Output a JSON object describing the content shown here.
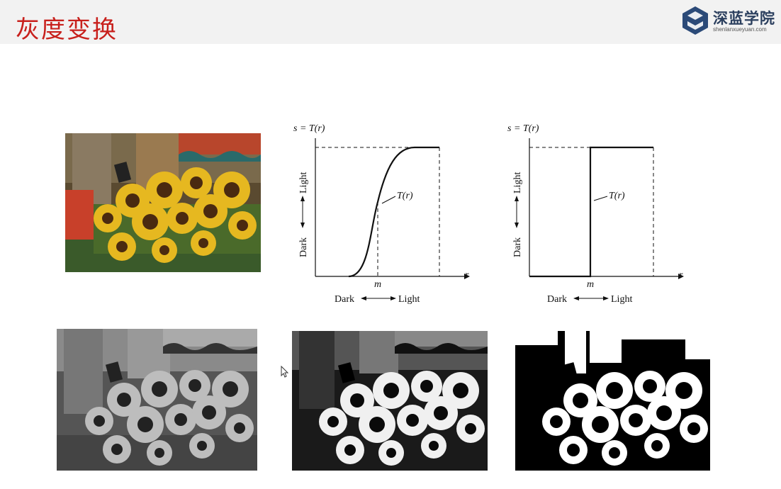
{
  "slide": {
    "title": "灰度变换",
    "logo": {
      "name": "深蓝学院",
      "url": "shenlanxueyuan.com",
      "mark_color": "#2b4a78",
      "icon": "diamond-s-logo-icon"
    }
  },
  "graphs": [
    {
      "type": "contrast-stretching",
      "y_axis_label": "s = T(r)",
      "x_axis_label": "r",
      "curve_label": "T(r)",
      "midpoint_label": "m",
      "vertical_dark": "Dark",
      "vertical_light": "Light",
      "horizontal_dark": "Dark",
      "horizontal_light": "Light"
    },
    {
      "type": "thresholding",
      "y_axis_label": "s = T(r)",
      "x_axis_label": "r",
      "curve_label": "T(r)",
      "midpoint_label": "m",
      "vertical_dark": "Dark",
      "vertical_light": "Light",
      "horizontal_dark": "Dark",
      "horizontal_light": "Light"
    }
  ],
  "images": [
    {
      "id": "original-color",
      "description_icon": "sunflower-photo"
    },
    {
      "id": "grayscale",
      "description_icon": "sunflower-photo"
    },
    {
      "id": "contrast-stretched",
      "description_icon": "sunflower-photo"
    },
    {
      "id": "thresholded",
      "description_icon": "sunflower-photo"
    }
  ]
}
